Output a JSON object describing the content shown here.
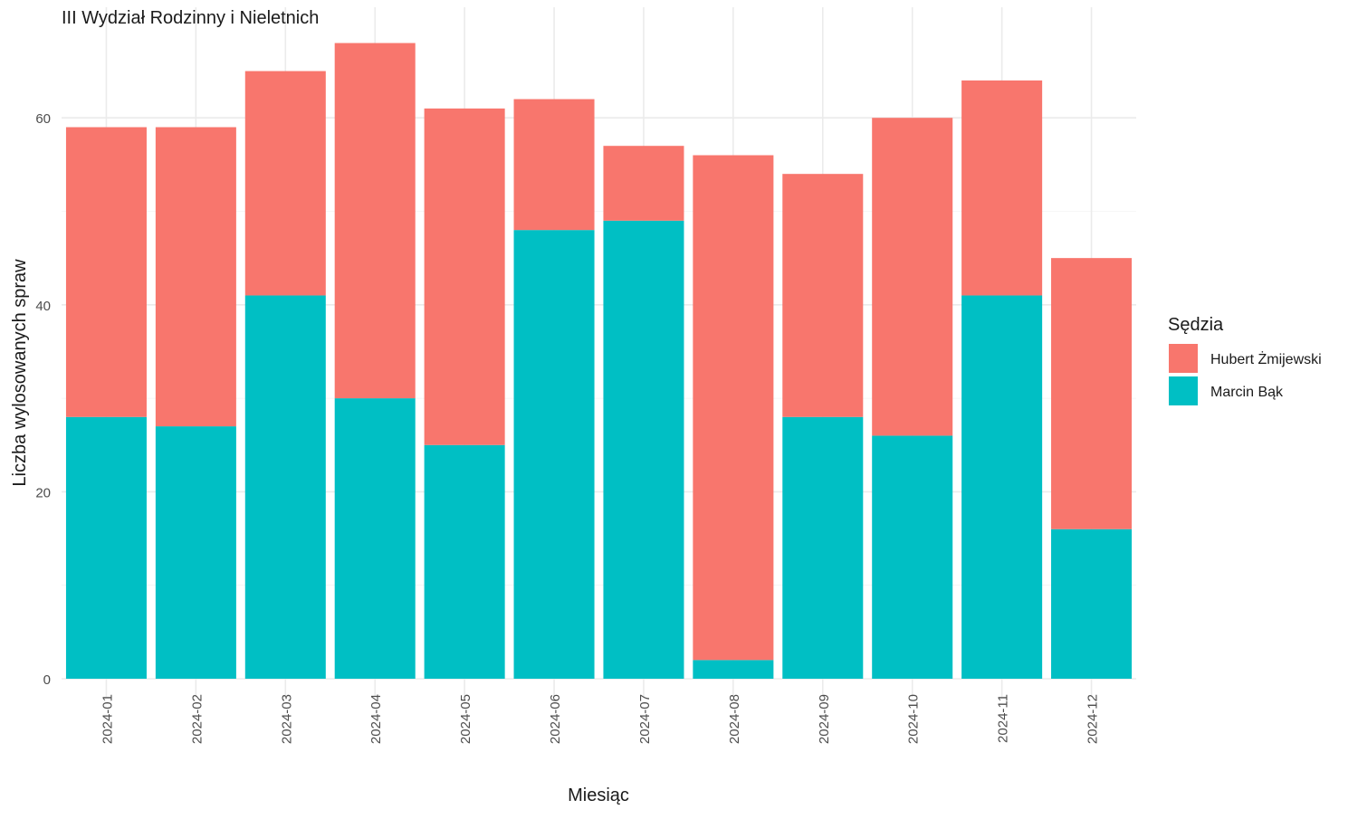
{
  "chart_data": {
    "type": "bar",
    "stacked": true,
    "title": "III Wydział Rodzinny i Nieletnich",
    "xlabel": "Miesiąc",
    "ylabel": "Liczba wylosowanych spraw",
    "categories": [
      "2024-01",
      "2024-02",
      "2024-03",
      "2024-04",
      "2024-05",
      "2024-06",
      "2024-07",
      "2024-08",
      "2024-09",
      "2024-10",
      "2024-11",
      "2024-12"
    ],
    "series": [
      {
        "name": "Marcin Bąk",
        "color": "#00BFC4",
        "values": [
          28,
          27,
          41,
          30,
          25,
          48,
          49,
          2,
          28,
          26,
          41,
          16
        ]
      },
      {
        "name": "Hubert Żmijewski",
        "color": "#F8766D",
        "values": [
          31,
          32,
          24,
          38,
          36,
          14,
          8,
          54,
          26,
          34,
          23,
          29
        ]
      }
    ],
    "ylim": [
      0,
      68
    ],
    "yticks": [
      0,
      20,
      40,
      60
    ],
    "grid": true,
    "legend": {
      "title": "Sędzia",
      "placement": "right",
      "order": [
        "Hubert Żmijewski",
        "Marcin Bąk"
      ]
    }
  }
}
